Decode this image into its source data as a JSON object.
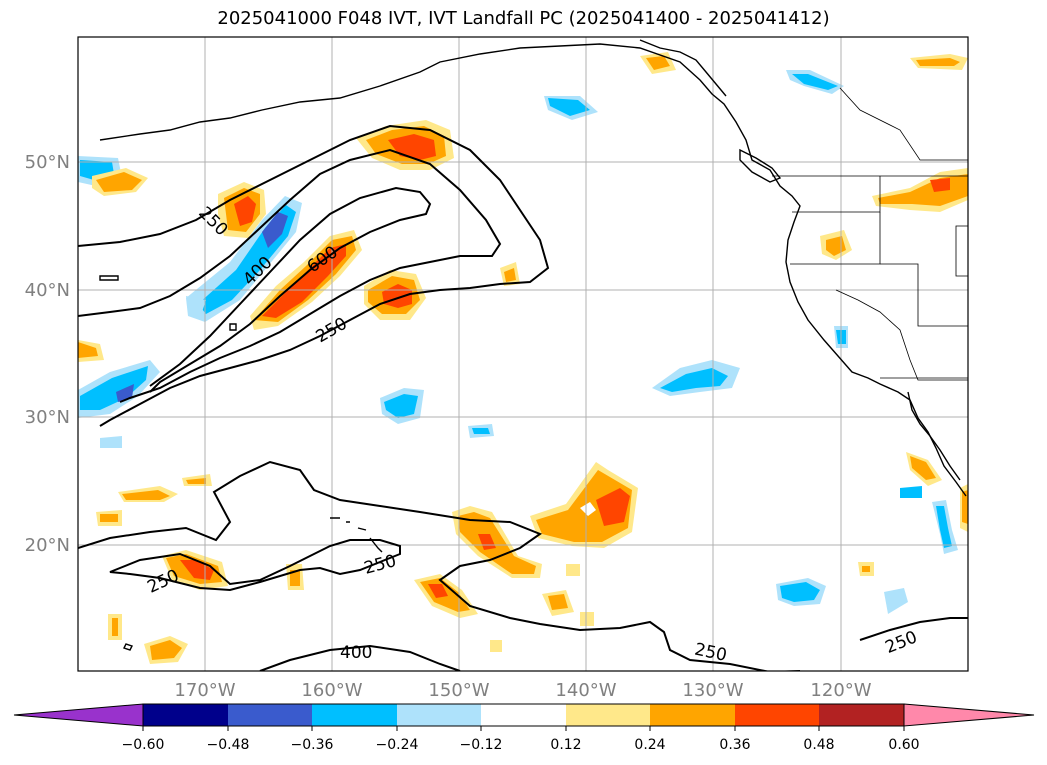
{
  "title": "2025041000 F048 IVT, IVT Landfall PC (2025041400 - 2025041412)",
  "map": {
    "lat_labels": [
      "50°N",
      "40°N",
      "30°N",
      "20°N"
    ],
    "lon_labels": [
      "170°W",
      "160°W",
      "150°W",
      "140°W",
      "130°W",
      "120°W"
    ],
    "contour_labels": [
      "250",
      "400",
      "600",
      "250",
      "250",
      "250",
      "400",
      "250",
      "250"
    ]
  },
  "colorbar": {
    "ticks": [
      "−0.60",
      "−0.48",
      "−0.36",
      "−0.24",
      "−0.12",
      "0.12",
      "0.24",
      "0.36",
      "0.48",
      "0.60"
    ],
    "colors": [
      "#9932cc",
      "#00008b",
      "#3a5bcd",
      "#00bfff",
      "#aee2fb",
      "#ffffff",
      "#ffe88a",
      "#ffa500",
      "#ff4500",
      "#b22222",
      "#ff88aa"
    ]
  },
  "colors": {
    "neg_light": "#aee2fb",
    "neg_mid": "#00bfff",
    "neg_dark": "#3a5bcd",
    "neg_darkest": "#00008b",
    "neg_extreme": "#9932cc",
    "pos_light": "#ffe88a",
    "pos_mid": "#ffa500",
    "pos_dark": "#ff4500"
  }
}
